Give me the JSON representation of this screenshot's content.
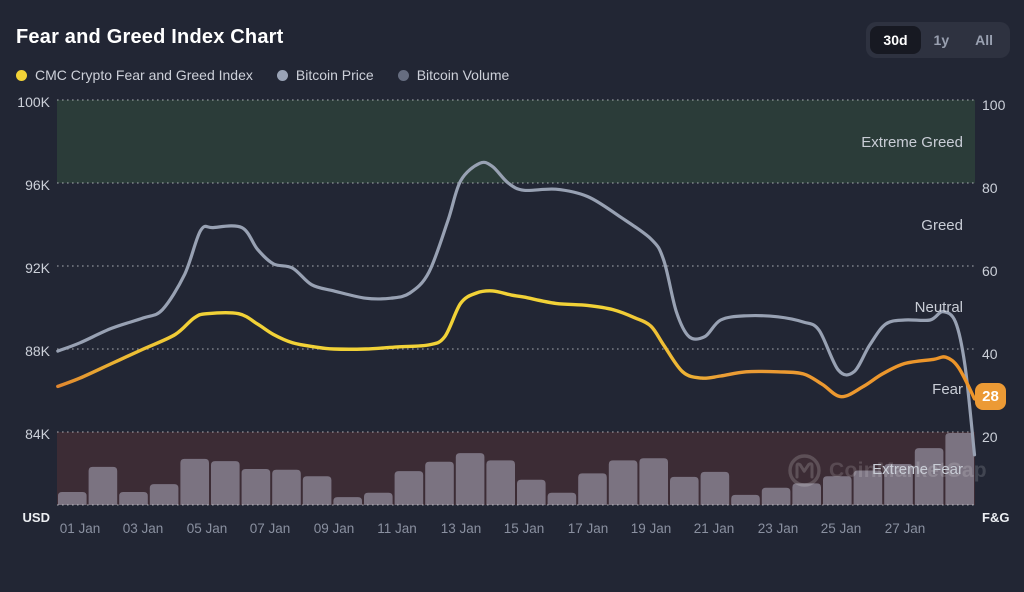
{
  "header": {
    "title": "Fear and Greed Index Chart",
    "range_buttons": [
      {
        "label": "30d",
        "active": true
      },
      {
        "label": "1y",
        "active": false
      },
      {
        "label": "All",
        "active": false
      }
    ]
  },
  "legend": {
    "items": [
      {
        "label": "CMC Crypto Fear and Greed Index",
        "color": "#F2D237"
      },
      {
        "label": "Bitcoin Price",
        "color": "#9AA3B6"
      },
      {
        "label": "Bitcoin Volume",
        "color": "#666D80"
      }
    ]
  },
  "axes": {
    "left": {
      "ticks": [
        "100K",
        "96K",
        "92K",
        "88K",
        "84K"
      ],
      "unit": "USD"
    },
    "right": {
      "ticks": [
        "100",
        "80",
        "60",
        "40",
        "20"
      ],
      "unit": "F&G"
    },
    "x_ticks": [
      "01 Jan",
      "03 Jan",
      "05 Jan",
      "07 Jan",
      "09 Jan",
      "11 Jan",
      "13 Jan",
      "15 Jan",
      "17 Jan",
      "19 Jan",
      "21 Jan",
      "23 Jan",
      "25 Jan",
      "27 Jan"
    ]
  },
  "zones": {
    "labels": [
      "Extreme Greed",
      "Greed",
      "Neutral",
      "Fear",
      "Extreme Fear"
    ],
    "extreme_greed_band_color": "#2B3C39",
    "extreme_fear_band_color": "#3C2C35"
  },
  "current_value_badge": {
    "value": "28",
    "color": "#EC9A35"
  },
  "watermark": {
    "label": "CoinMarketCap"
  },
  "chart_data": {
    "type": "line",
    "title": "Fear and Greed Index Chart",
    "x_unit": "day of January",
    "x_range": [
      1,
      29
    ],
    "grid": "dotted horizontal",
    "legend_position": "top-left",
    "left_axis": {
      "label": "USD",
      "meaning": "Bitcoin price in USD",
      "ticks": [
        100000,
        96000,
        92000,
        88000,
        84000
      ]
    },
    "right_axis": {
      "label": "F&G",
      "meaning": "Fear and Greed index 0-100",
      "ticks": [
        100,
        80,
        60,
        40,
        20
      ]
    },
    "zones": [
      {
        "label": "Extreme Greed",
        "range": [
          80,
          100
        ],
        "shaded": true
      },
      {
        "label": "Greed",
        "range": [
          60,
          80
        ],
        "shaded": false
      },
      {
        "label": "Neutral",
        "range": [
          40,
          60
        ],
        "shaded": false
      },
      {
        "label": "Fear",
        "range": [
          20,
          40
        ],
        "shaded": false
      },
      {
        "label": "Extreme Fear",
        "range": [
          0,
          20
        ],
        "shaded": true
      }
    ],
    "current_value": 28,
    "series": [
      {
        "name": "Bitcoin Price",
        "type": "line",
        "axis": "left",
        "color": "#98A1B3",
        "points": [
          [
            0.3,
            87900
          ],
          [
            1,
            88300
          ],
          [
            2,
            89000
          ],
          [
            3,
            89500
          ],
          [
            3.6,
            89900
          ],
          [
            4.3,
            91600
          ],
          [
            4.8,
            93700
          ],
          [
            5.2,
            93850
          ],
          [
            6.1,
            93850
          ],
          [
            6.6,
            92800
          ],
          [
            7.1,
            92100
          ],
          [
            7.7,
            91900
          ],
          [
            8.3,
            91100
          ],
          [
            9,
            90800
          ],
          [
            10,
            90450
          ],
          [
            10.8,
            90450
          ],
          [
            11.4,
            90700
          ],
          [
            12,
            91700
          ],
          [
            12.6,
            94200
          ],
          [
            13,
            96100
          ],
          [
            13.6,
            96950
          ],
          [
            14,
            96800
          ],
          [
            14.5,
            96000
          ],
          [
            15,
            95650
          ],
          [
            16,
            95700
          ],
          [
            17,
            95350
          ],
          [
            18,
            94400
          ],
          [
            19,
            93300
          ],
          [
            19.4,
            92300
          ],
          [
            19.8,
            89800
          ],
          [
            20.2,
            88600
          ],
          [
            20.7,
            88600
          ],
          [
            21.2,
            89400
          ],
          [
            22,
            89600
          ],
          [
            23,
            89550
          ],
          [
            23.8,
            89300
          ],
          [
            24.3,
            88900
          ],
          [
            24.9,
            87000
          ],
          [
            25.4,
            86900
          ],
          [
            25.9,
            88200
          ],
          [
            26.4,
            89200
          ],
          [
            27,
            89400
          ],
          [
            27.8,
            89400
          ],
          [
            28.2,
            89800
          ],
          [
            28.6,
            89300
          ],
          [
            28.9,
            87200
          ],
          [
            29.2,
            82900
          ]
        ]
      },
      {
        "name": "CMC Crypto Fear and Greed Index",
        "type": "line",
        "axis": "right",
        "gradient": [
          {
            "offset": 0,
            "color": "#E0862F"
          },
          {
            "offset": 0.08,
            "color": "#EDBE34"
          },
          {
            "offset": 0.15,
            "color": "#F2D237"
          },
          {
            "offset": 0.6,
            "color": "#F2D237"
          },
          {
            "offset": 0.66,
            "color": "#EFBE35"
          },
          {
            "offset": 0.73,
            "color": "#EB9C35"
          },
          {
            "offset": 1,
            "color": "#ED9428"
          }
        ],
        "points": [
          [
            0.3,
            31
          ],
          [
            1,
            33
          ],
          [
            2,
            36.5
          ],
          [
            3,
            40
          ],
          [
            4,
            43.5
          ],
          [
            4.6,
            47.5
          ],
          [
            5,
            48.5
          ],
          [
            6,
            48.5
          ],
          [
            6.6,
            46
          ],
          [
            7.1,
            43.5
          ],
          [
            7.7,
            41.5
          ],
          [
            8.4,
            40.5
          ],
          [
            9,
            40
          ],
          [
            10,
            40
          ],
          [
            11,
            40.5
          ],
          [
            12,
            41
          ],
          [
            12.5,
            43
          ],
          [
            13,
            51
          ],
          [
            13.5,
            53.5
          ],
          [
            14,
            54
          ],
          [
            14.6,
            53
          ],
          [
            15,
            52.5
          ],
          [
            16,
            51
          ],
          [
            17,
            50.5
          ],
          [
            17.8,
            49.5
          ],
          [
            18.5,
            47.5
          ],
          [
            19,
            45.5
          ],
          [
            19.4,
            41
          ],
          [
            20,
            34.5
          ],
          [
            20.6,
            33
          ],
          [
            21.2,
            33.5
          ],
          [
            22,
            34.5
          ],
          [
            23,
            34.5
          ],
          [
            23.8,
            34
          ],
          [
            24.4,
            31.5
          ],
          [
            25,
            28.5
          ],
          [
            25.7,
            31
          ],
          [
            26.3,
            34
          ],
          [
            27,
            36.5
          ],
          [
            27.9,
            37.5
          ],
          [
            28.3,
            38
          ],
          [
            28.7,
            35.5
          ],
          [
            29.2,
            28
          ]
        ]
      },
      {
        "name": "Bitcoin Volume",
        "type": "bar",
        "axis": "volume-strip",
        "color": "#7E7786",
        "values_relative": [
          18,
          53,
          18,
          29,
          64,
          61,
          50,
          49,
          40,
          11,
          17,
          47,
          60,
          72,
          62,
          35,
          17,
          44,
          62,
          65,
          39,
          46,
          14,
          24,
          30,
          40,
          48,
          57,
          79,
          100
        ]
      }
    ]
  }
}
